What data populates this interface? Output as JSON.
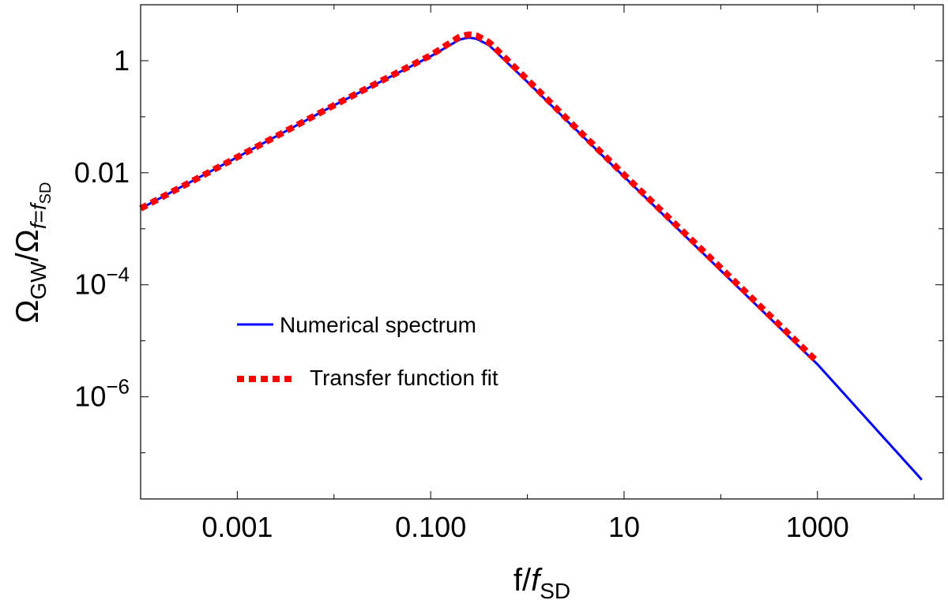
{
  "chart_data": {
    "type": "line",
    "scale": {
      "x": "log",
      "y": "log"
    },
    "xlabel": {
      "base": "f/",
      "italic": "f",
      "sub": "SD"
    },
    "ylabel": {
      "omega1": "Ω",
      "sub1": "GW",
      "slash": "/",
      "omega2": "Ω",
      "sub2_italic1": "f",
      "sub2_eq": "=",
      "sub2_italic2": "f",
      "sub2_sub": "SD"
    },
    "xlim": [
      0.0001,
      20000
    ],
    "ylim": [
      1.5e-08,
      10
    ],
    "x_ticks": [
      {
        "value": 0.001,
        "label": "0.001"
      },
      {
        "value": 0.1,
        "label": "0.100"
      },
      {
        "value": 10,
        "label": "10"
      },
      {
        "value": 1000,
        "label": "1000"
      }
    ],
    "y_ticks": [
      {
        "value": 1,
        "label": "1",
        "base": "",
        "exp": ""
      },
      {
        "value": 0.01,
        "label": "0.01",
        "base": "",
        "exp": ""
      },
      {
        "value": 0.0001,
        "label": "",
        "base": "10",
        "exp": "−4"
      },
      {
        "value": 1e-06,
        "label": "",
        "base": "10",
        "exp": "−6"
      }
    ],
    "series": [
      {
        "name": "Numerical spectrum",
        "color": "#0000ff",
        "style": "solid",
        "x": [
          0.0001,
          0.001,
          0.01,
          0.1,
          0.2,
          0.25,
          0.3,
          0.4,
          1,
          3,
          10,
          100,
          1000,
          12000
        ],
        "y": [
          0.0023,
          0.019,
          0.16,
          1.2,
          2.4,
          2.6,
          2.45,
          1.9,
          0.42,
          0.065,
          0.0085,
          0.00018,
          3.8e-06,
          3.3e-08
        ]
      },
      {
        "name": "Transfer function fit",
        "color": "#ff0000",
        "style": "dotted",
        "x": [
          0.0001,
          0.001,
          0.01,
          0.1,
          0.2,
          0.25,
          0.3,
          0.4,
          1,
          3,
          10,
          100,
          1000
        ],
        "y": [
          0.0023,
          0.019,
          0.16,
          1.25,
          2.7,
          2.95,
          2.8,
          2.15,
          0.46,
          0.07,
          0.0092,
          0.0002,
          4.2e-06
        ]
      }
    ],
    "legend": {
      "position": "center-left"
    }
  }
}
